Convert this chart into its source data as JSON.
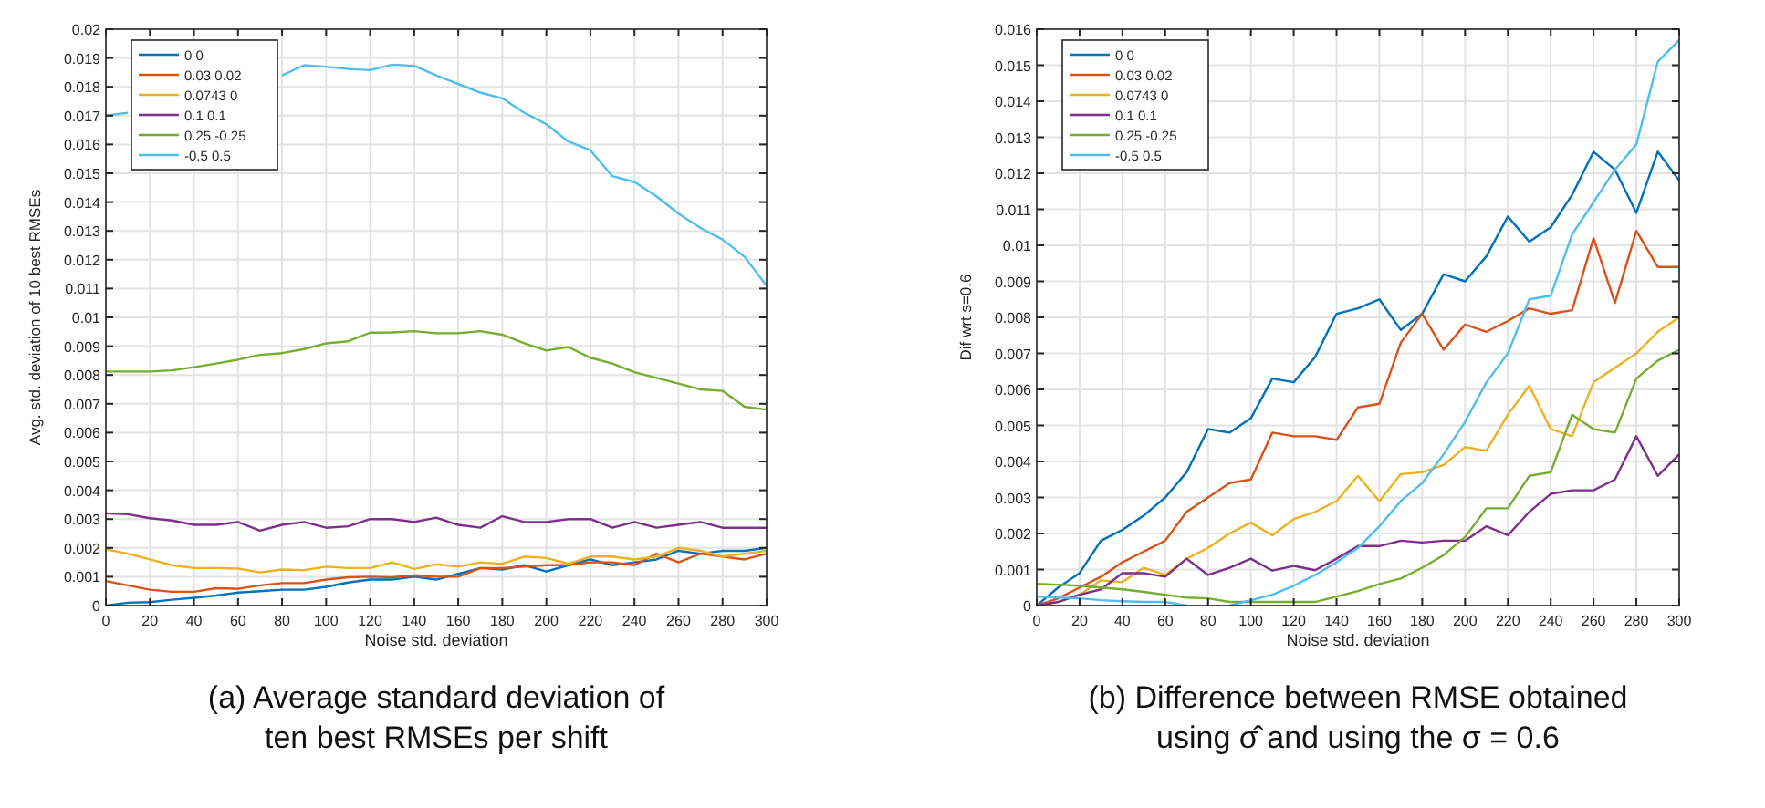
{
  "chart_data": [
    {
      "type": "line",
      "xlabel": "Noise std. deviation",
      "ylabel": "Avg. std. deviation of 10 best RMSEs",
      "annotations": [
        "(a) Average standard deviation of ten best RMSEs per shift"
      ],
      "x": [
        0,
        10,
        20,
        30,
        40,
        50,
        60,
        70,
        80,
        90,
        100,
        110,
        120,
        130,
        140,
        150,
        160,
        170,
        180,
        190,
        200,
        210,
        220,
        230,
        240,
        250,
        260,
        270,
        280,
        290,
        300
      ],
      "xlim": [
        0,
        300
      ],
      "xticks": [
        0,
        20,
        40,
        60,
        80,
        100,
        120,
        140,
        160,
        180,
        200,
        220,
        240,
        260,
        280,
        300
      ],
      "ylim": [
        0,
        0.02
      ],
      "yticks": [
        0,
        0.001,
        0.002,
        0.003,
        0.004,
        0.005,
        0.006,
        0.007,
        0.008,
        0.009,
        0.01,
        0.011,
        0.012,
        0.013,
        0.014,
        0.015,
        0.016,
        0.017,
        0.018,
        0.019,
        0.02
      ],
      "grid": true,
      "legend": "top left",
      "series": [
        {
          "name": "0 0",
          "color": "#0072bd",
          "values": [
            0,
            0.0001,
            0.00012,
            0.0002,
            0.00027,
            0.00035,
            0.00045,
            0.0005,
            0.00055,
            0.00055,
            0.00065,
            0.0008,
            0.0009,
            0.0009,
            0.001,
            0.0009,
            0.0011,
            0.0013,
            0.00125,
            0.0014,
            0.00118,
            0.0014,
            0.0016,
            0.0014,
            0.0015,
            0.0016,
            0.0019,
            0.0018,
            0.0019,
            0.0019,
            0.002
          ]
        },
        {
          "name": "0.03 0.02",
          "color": "#d95319",
          "values": [
            0.00085,
            0.0007,
            0.00055,
            0.00048,
            0.00048,
            0.0006,
            0.00058,
            0.0007,
            0.00078,
            0.00078,
            0.0009,
            0.00098,
            0.001,
            0.00098,
            0.00105,
            0.001,
            0.001,
            0.0013,
            0.0013,
            0.00135,
            0.0014,
            0.0014,
            0.0015,
            0.0015,
            0.0014,
            0.0018,
            0.0015,
            0.0018,
            0.0017,
            0.0016,
            0.0018
          ]
        },
        {
          "name": "0.0743 0",
          "color": "#edb120",
          "values": [
            0.00195,
            0.0018,
            0.0016,
            0.0014,
            0.0013,
            0.0013,
            0.00128,
            0.00115,
            0.00125,
            0.00123,
            0.00135,
            0.0013,
            0.0013,
            0.0015,
            0.00127,
            0.00143,
            0.00135,
            0.0015,
            0.00145,
            0.0017,
            0.00165,
            0.00145,
            0.0017,
            0.0017,
            0.0016,
            0.0017,
            0.002,
            0.0019,
            0.0017,
            0.0018,
            0.0019
          ]
        },
        {
          "name": "0.1 0.1",
          "color": "#7e2f8e",
          "values": [
            0.0032,
            0.00317,
            0.00303,
            0.00295,
            0.0028,
            0.0028,
            0.0029,
            0.0026,
            0.0028,
            0.0029,
            0.0027,
            0.00275,
            0.003,
            0.003,
            0.0029,
            0.00305,
            0.0028,
            0.0027,
            0.0031,
            0.0029,
            0.0029,
            0.003,
            0.003,
            0.0027,
            0.0029,
            0.0027,
            0.0028,
            0.0029,
            0.0027,
            0.0027,
            0.0027
          ]
        },
        {
          "name": "0.25 -0.25",
          "color": "#77ac30",
          "values": [
            0.00812,
            0.00812,
            0.00812,
            0.00816,
            0.00827,
            0.0084,
            0.00853,
            0.0087,
            0.00876,
            0.0089,
            0.0091,
            0.00917,
            0.00947,
            0.00948,
            0.00952,
            0.00945,
            0.00945,
            0.00952,
            0.0094,
            0.0091,
            0.00885,
            0.00897,
            0.0086,
            0.0084,
            0.0081,
            0.0079,
            0.0077,
            0.0075,
            0.00745,
            0.0069,
            0.0068
          ]
        },
        {
          "name": "-0.5 0.5",
          "color": "#4dbeee",
          "values": [
            0.017,
            0.0171,
            null,
            null,
            null,
            null,
            null,
            null,
            0.0184,
            0.01875,
            0.0187,
            0.01862,
            0.01858,
            0.01877,
            0.01873,
            0.0184,
            0.0181,
            0.0178,
            0.0176,
            0.0171,
            0.0167,
            0.0161,
            0.0158,
            0.0149,
            0.0147,
            0.0142,
            0.0136,
            0.0131,
            0.0127,
            0.0121,
            0.0111
          ]
        }
      ]
    },
    {
      "type": "line",
      "xlabel": "Noise std. deviation",
      "ylabel": "Dif wrt s=0.6",
      "annotations": [
        "(b) Difference between RMSE obtained using σ̂ and using the σ = 0.6"
      ],
      "x": [
        0,
        10,
        20,
        30,
        40,
        50,
        60,
        70,
        80,
        90,
        100,
        110,
        120,
        130,
        140,
        150,
        160,
        170,
        180,
        190,
        200,
        210,
        220,
        230,
        240,
        250,
        260,
        270,
        280,
        290,
        300
      ],
      "xlim": [
        0,
        300
      ],
      "xticks": [
        0,
        20,
        40,
        60,
        80,
        100,
        120,
        140,
        160,
        180,
        200,
        220,
        240,
        260,
        280,
        300
      ],
      "ylim": [
        0,
        0.016
      ],
      "yticks": [
        0,
        0.001,
        0.002,
        0.003,
        0.004,
        0.005,
        0.006,
        0.007,
        0.008,
        0.009,
        0.01,
        0.011,
        0.012,
        0.013,
        0.014,
        0.015,
        0.016
      ],
      "grid": true,
      "legend": "top left",
      "series": [
        {
          "name": "0 0",
          "color": "#0072bd",
          "values": [
            0,
            0.0005,
            0.0009,
            0.0018,
            0.0021,
            0.0025,
            0.003,
            0.0037,
            0.0049,
            0.0048,
            0.0052,
            0.0063,
            0.0062,
            0.0069,
            0.0081,
            0.00825,
            0.0085,
            0.00765,
            0.0081,
            0.0092,
            0.009,
            0.0097,
            0.0108,
            0.0101,
            0.0105,
            0.0114,
            0.0126,
            0.0121,
            0.0109,
            0.0126,
            0.0118
          ]
        },
        {
          "name": "0.03 0.02",
          "color": "#d95319",
          "values": [
            0,
            0.0002,
            0.0005,
            0.0008,
            0.0012,
            0.0015,
            0.0018,
            0.0026,
            0.003,
            0.0034,
            0.0035,
            0.0048,
            0.0047,
            0.0047,
            0.0046,
            0.0055,
            0.0056,
            0.0073,
            0.0081,
            0.0071,
            0.0078,
            0.0076,
            0.0079,
            0.00825,
            0.0081,
            0.0082,
            0.0102,
            0.0084,
            0.0104,
            0.0094,
            0.0094
          ]
        },
        {
          "name": "0.0743 0",
          "color": "#edb120",
          "values": [
            0,
            0.0001,
            0.0003,
            0.0007,
            0.00065,
            0.00105,
            0.00085,
            0.0013,
            0.0016,
            0.002,
            0.0023,
            0.00195,
            0.0024,
            0.0026,
            0.0029,
            0.0036,
            0.0029,
            0.00365,
            0.0037,
            0.0039,
            0.0044,
            0.0043,
            0.0053,
            0.0061,
            0.0049,
            0.0047,
            0.0062,
            0.0066,
            0.007,
            0.0076,
            0.008
          ]
        },
        {
          "name": "0.1 0.1",
          "color": "#7e2f8e",
          "values": [
            0,
            0.0001,
            0.0003,
            0.00045,
            0.0009,
            0.0009,
            0.0008,
            0.0013,
            0.00085,
            0.00105,
            0.0013,
            0.00097,
            0.0011,
            0.00098,
            0.0013,
            0.00165,
            0.00165,
            0.0018,
            0.00175,
            0.0018,
            0.0018,
            0.0022,
            0.00195,
            0.0026,
            0.0031,
            0.0032,
            0.0032,
            0.0035,
            0.0047,
            0.0036,
            0.0042
          ]
        },
        {
          "name": "0.25 -0.25",
          "color": "#77ac30",
          "values": [
            0.0006,
            0.00058,
            0.00055,
            0.0005,
            0.00045,
            0.00038,
            0.0003,
            0.00022,
            0.0002,
            0.0001,
            0.0001,
            0.0001,
            0.0001,
            0.0001,
            0.00025,
            0.0004,
            0.0006,
            0.00075,
            0.00105,
            0.0014,
            0.0019,
            0.0027,
            0.0027,
            0.0036,
            0.0037,
            0.0053,
            0.0049,
            0.0048,
            0.0063,
            0.0068,
            0.0071
          ]
        },
        {
          "name": "-0.5 0.5",
          "color": "#4dbeee",
          "values": [
            0.00025,
            0.00022,
            0.0002,
            0.00015,
            0.00012,
            0.0001,
            0.0001,
            0,
            null,
            0,
            0.00015,
            0.0003,
            0.00055,
            0.00085,
            0.0012,
            0.0016,
            0.0022,
            0.0029,
            0.0034,
            0.0042,
            0.0051,
            0.0062,
            0.007,
            0.0085,
            0.0086,
            0.0103,
            0.0112,
            0.0121,
            0.0128,
            0.0151,
            0.0157
          ]
        }
      ]
    }
  ]
}
